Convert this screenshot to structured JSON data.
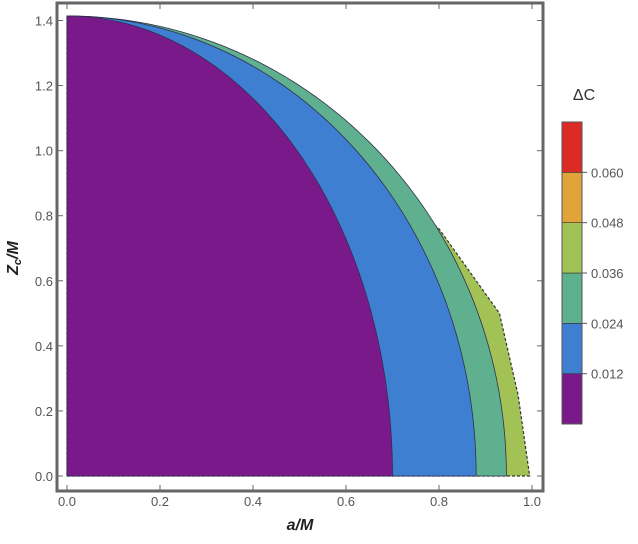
{
  "chart_data": {
    "type": "contour",
    "xlabel": "a/M",
    "ylabel_main": "Z",
    "ylabel_sub": "c",
    "ylabel_tail": "/M",
    "xlim": [
      0.0,
      1.0
    ],
    "ylim": [
      0.0,
      1.42
    ],
    "x_ticks": [
      "0.0",
      "0.2",
      "0.4",
      "0.6",
      "0.8",
      "1.0"
    ],
    "y_ticks": [
      "0.0",
      "0.2",
      "0.4",
      "0.6",
      "0.8",
      "1.0",
      "1.2",
      "1.4"
    ],
    "x_tick_values": [
      0.0,
      0.2,
      0.4,
      0.6,
      0.8,
      1.0
    ],
    "y_tick_values": [
      0.0,
      0.2,
      0.4,
      0.6,
      0.8,
      1.0,
      1.2,
      1.4
    ],
    "zmax": 1.414,
    "contours": [
      {
        "level": "0.012",
        "a_intercept": 0.7
      },
      {
        "level": "0.024",
        "a_intercept": 0.88
      },
      {
        "level": "0.036",
        "a_intercept": 0.945
      },
      {
        "level": "0.048",
        "a_intercept": 0.98
      }
    ],
    "outer_boundary": [
      [
        0.0,
        1.414
      ],
      [
        0.2,
        1.31
      ],
      [
        0.4,
        1.17
      ],
      [
        0.6,
        0.99
      ],
      [
        0.8,
        0.76
      ],
      [
        0.93,
        0.5
      ],
      [
        0.97,
        0.25
      ],
      [
        0.995,
        0.0
      ]
    ],
    "colorbar": {
      "title": "ΔC",
      "tick_labels": [
        "0.012",
        "0.024",
        "0.036",
        "0.048",
        "0.060"
      ],
      "tick_values": [
        0.012,
        0.024,
        0.036,
        0.048,
        0.06
      ],
      "range": [
        0.0,
        0.072
      ],
      "colors": [
        "#7a1a8a",
        "#3f7fd1",
        "#5fb08f",
        "#a3c255",
        "#e0a43a",
        "#dc2a26"
      ]
    }
  }
}
